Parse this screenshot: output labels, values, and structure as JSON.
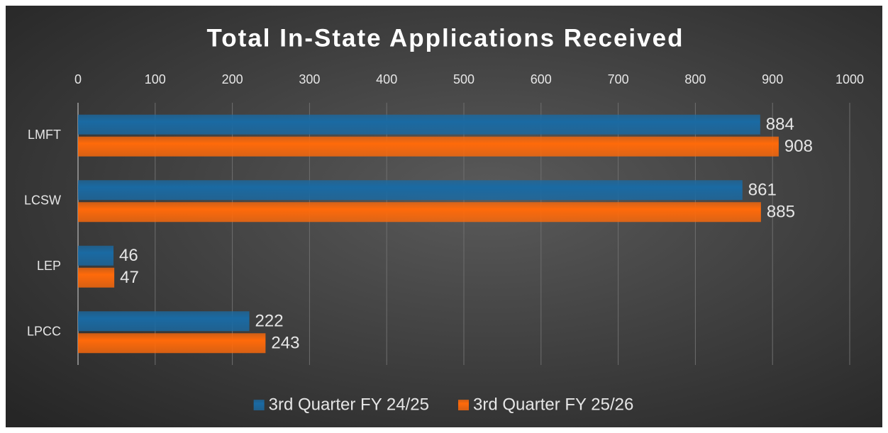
{
  "chart_data": {
    "type": "bar",
    "orientation": "horizontal",
    "title": "Total In-State Applications Received",
    "categories": [
      "LMFT",
      "LCSW",
      "LEP",
      "LPCC"
    ],
    "series": [
      {
        "name": "3rd Quarter FY 24/25",
        "color": "#1a6aa3",
        "values": [
          884,
          861,
          46,
          222
        ]
      },
      {
        "name": "3rd Quarter FY 25/26",
        "color": "#ff6a0a",
        "values": [
          908,
          885,
          47,
          243
        ]
      }
    ],
    "xlim": [
      0,
      1000
    ],
    "xticks": [
      0,
      100,
      200,
      300,
      400,
      500,
      600,
      700,
      800,
      900,
      1000
    ],
    "grid": true,
    "legend": "bottom"
  }
}
